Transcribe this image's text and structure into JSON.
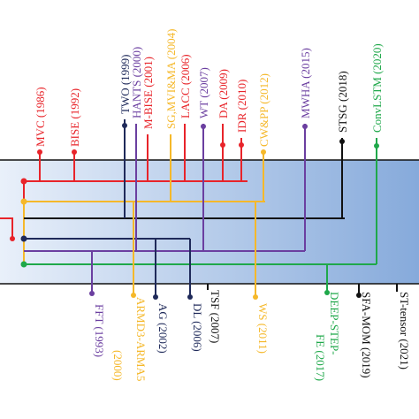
{
  "colors": {
    "band_light": "#e9f0fa",
    "band_dark": "#86aadb",
    "red": "#e8242a",
    "orange": "#f5b82a",
    "navy": "#1f2a5a",
    "black": "#111111",
    "purple": "#6b3fa0",
    "green": "#1fa84a"
  },
  "top_labels": [
    {
      "id": "mvc",
      "text": "MVC (1986)",
      "color": "red"
    },
    {
      "id": "bise",
      "text": "BISE (1992)",
      "color": "red"
    },
    {
      "id": "two",
      "text": "TWO (1999)",
      "color": "navy"
    },
    {
      "id": "hants",
      "text": "HANTS (2000)",
      "color": "purple"
    },
    {
      "id": "mbise",
      "text": "M-BISE (2001)",
      "color": "red"
    },
    {
      "id": "sgmvi",
      "text": "SG,MVI&MA (2004)",
      "color": "orange"
    },
    {
      "id": "lacc",
      "text": "LACC (2006)",
      "color": "red"
    },
    {
      "id": "wt",
      "text": "WT (2007)",
      "color": "purple"
    },
    {
      "id": "da",
      "text": "DA (2009)",
      "color": "red"
    },
    {
      "id": "idr",
      "text": "IDR (2010)",
      "color": "red"
    },
    {
      "id": "cwpp",
      "text": "CW&PP (2012)",
      "color": "orange"
    },
    {
      "id": "mwha",
      "text": "MWHA (2015)",
      "color": "purple"
    },
    {
      "id": "stsg",
      "text": "STSG (2018)",
      "color": "black"
    },
    {
      "id": "convlstm",
      "text": "ConvLSTM (2020)",
      "color": "green"
    }
  ],
  "bottom_labels": [
    {
      "id": "fft",
      "text": "FFT (1993)",
      "color": "purple"
    },
    {
      "id": "armd3",
      "text": "ARMD3-ARMA5",
      "color": "orange"
    },
    {
      "id": "armd3_year",
      "text": "(2000)",
      "color": "orange"
    },
    {
      "id": "ag",
      "text": "AG (2002)",
      "color": "navy"
    },
    {
      "id": "dl",
      "text": "DL (2006)",
      "color": "navy"
    },
    {
      "id": "tsf",
      "text": "TSF (2007)",
      "color": "black"
    },
    {
      "id": "ws",
      "text": "WS (2011)",
      "color": "orange"
    },
    {
      "id": "deep",
      "text": "DEEP-STEP-",
      "color": "green"
    },
    {
      "id": "deep2",
      "text": "FE (2017)",
      "color": "green"
    },
    {
      "id": "sfamom",
      "text": "SFA-MOM (2019)",
      "color": "black"
    },
    {
      "id": "sttensor",
      "text": "ST-tensor (2021)",
      "color": "black"
    }
  ]
}
